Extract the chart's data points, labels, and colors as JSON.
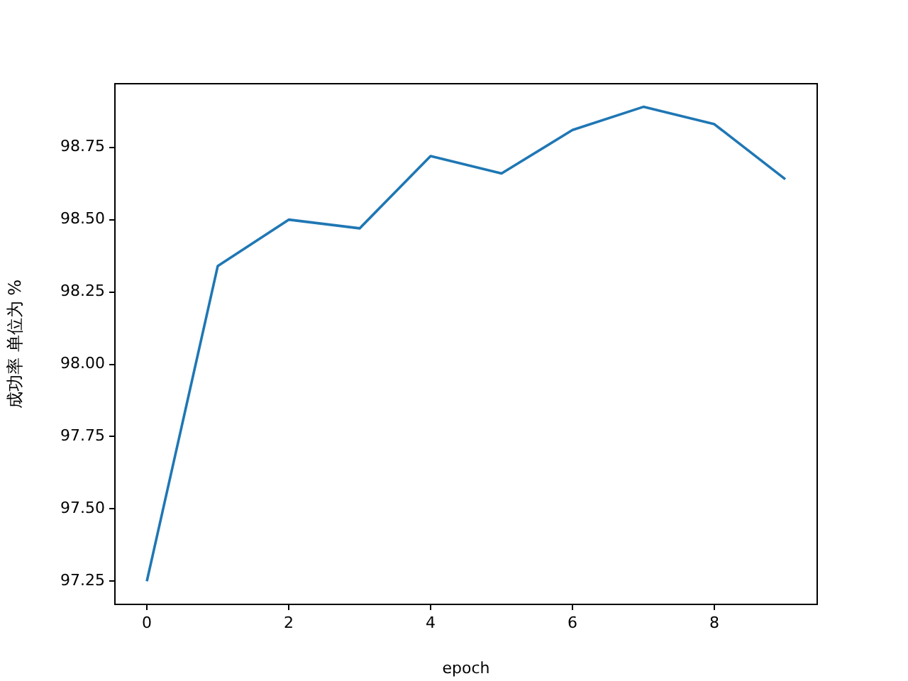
{
  "chart_data": {
    "type": "line",
    "xlabel": "epoch",
    "ylabel": "成功率 单位为 %",
    "x": [
      0,
      1,
      2,
      3,
      4,
      5,
      6,
      7,
      8,
      9
    ],
    "series": [
      {
        "color": "#1f77b4",
        "values": [
          97.25,
          98.34,
          98.5,
          98.47,
          98.72,
          98.66,
          98.81,
          98.89,
          98.83,
          98.64
        ]
      }
    ],
    "xlim": [
      -0.45,
      9.45
    ],
    "xticks": [
      0,
      2,
      4,
      6,
      8
    ],
    "ylim": [
      97.17,
      98.97
    ],
    "yticks": [
      97.25,
      {
        "value": 97.5,
        "label": "97.50"
      },
      97.75,
      {
        "value": 98.0,
        "label": "98.00"
      },
      98.25,
      {
        "value": 98.5,
        "label": "98.50"
      },
      98.75
    ],
    "grid": false,
    "legend": false,
    "marker": "none",
    "line_style": "solid"
  }
}
